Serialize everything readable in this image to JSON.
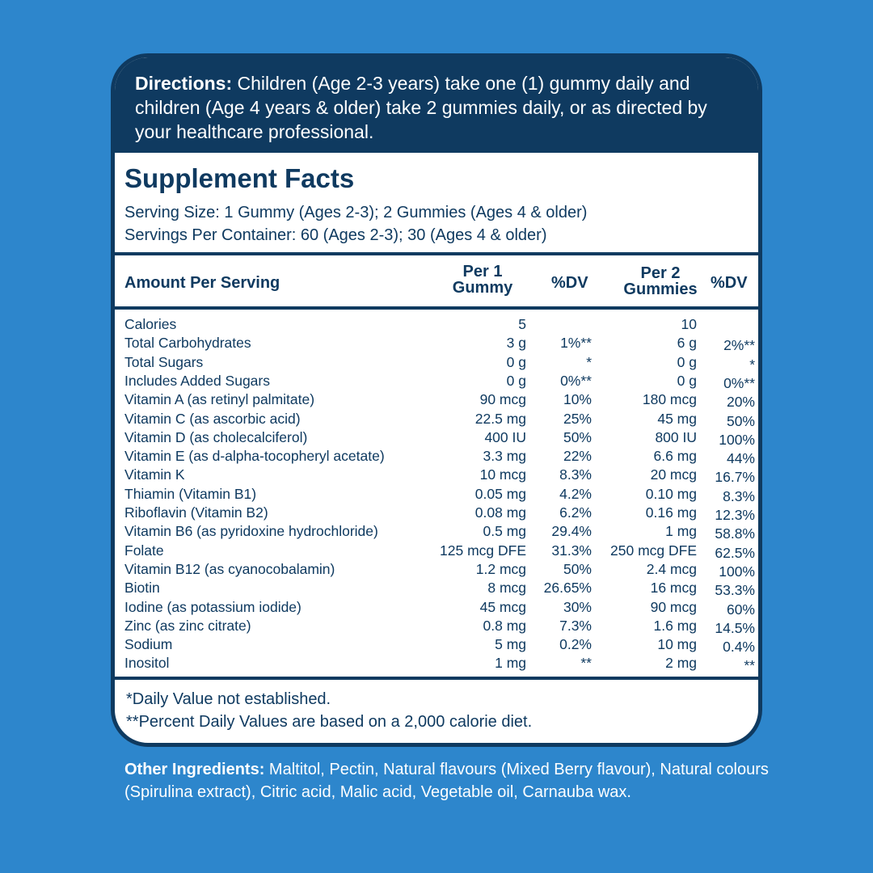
{
  "directions": {
    "label": "Directions:",
    "text": " Children (Age 2-3 years) take one (1) gummy daily and children (Age 4 years & older) take 2 gummies daily, or as directed by your healthcare professional."
  },
  "facts": {
    "title": "Supplement Facts",
    "serving_size": "Serving Size: 1 Gummy (Ages 2-3); 2 Gummies (Ages 4 & older)",
    "servings_per_container": "Servings Per Container: 60 (Ages 2-3); 30 (Ages 4 & older)",
    "headers": {
      "amount": "Amount Per Serving",
      "per1_line1": "Per 1",
      "per1_line2": "Gummy",
      "dv1": "%DV",
      "per2_line1": "Per 2",
      "per2_line2": "Gummies",
      "dv2": "%DV"
    },
    "rows": [
      {
        "name": "Calories",
        "v1": "5",
        "d1": "",
        "v2": "10",
        "d2": ""
      },
      {
        "name": "Total Carbohydrates",
        "v1": "3 g",
        "d1": "1%**",
        "v2": "6 g",
        "d2": "2%**"
      },
      {
        "name": "Total Sugars",
        "v1": "0 g",
        "d1": "*",
        "v2": "0 g",
        "d2": "*"
      },
      {
        "name": "Includes Added Sugars",
        "v1": "0 g",
        "d1": "0%**",
        "v2": "0 g",
        "d2": "0%**"
      },
      {
        "name": "Vitamin A (as retinyl palmitate)",
        "v1": "90 mcg",
        "d1": "10%",
        "v2": "180 mcg",
        "d2": "20%"
      },
      {
        "name": "Vitamin C (as ascorbic acid)",
        "v1": "22.5 mg",
        "d1": "25%",
        "v2": "45 mg",
        "d2": "50%"
      },
      {
        "name": "Vitamin D (as cholecalciferol)",
        "v1": "400 IU",
        "d1": "50%",
        "v2": "800 IU",
        "d2": "100%"
      },
      {
        "name": "Vitamin E (as d-alpha-tocopheryl acetate)",
        "v1": "3.3 mg",
        "d1": "22%",
        "v2": "6.6 mg",
        "d2": "44%"
      },
      {
        "name": "Vitamin K",
        "v1": "10 mcg",
        "d1": "8.3%",
        "v2": "20 mcg",
        "d2": "16.7%"
      },
      {
        "name": "Thiamin (Vitamin B1)",
        "v1": "0.05 mg",
        "d1": "4.2%",
        "v2": "0.10 mg",
        "d2": "8.3%"
      },
      {
        "name": "Riboflavin (Vitamin B2)",
        "v1": "0.08 mg",
        "d1": "6.2%",
        "v2": "0.16 mg",
        "d2": "12.3%"
      },
      {
        "name": "Vitamin B6 (as pyridoxine hydrochloride)",
        "v1": "0.5 mg",
        "d1": "29.4%",
        "v2": "1 mg",
        "d2": "58.8%"
      },
      {
        "name": "Folate",
        "v1": "125 mcg DFE",
        "d1": "31.3%",
        "v2": "250 mcg DFE",
        "d2": "62.5%"
      },
      {
        "name": "Vitamin B12 (as cyanocobalamin)",
        "v1": "1.2 mcg",
        "d1": "50%",
        "v2": "2.4 mcg",
        "d2": "100%"
      },
      {
        "name": "Biotin",
        "v1": "8 mcg",
        "d1": "26.65%",
        "v2": "16 mcg",
        "d2": "53.3%"
      },
      {
        "name": "Iodine (as potassium iodide)",
        "v1": "45 mcg",
        "d1": "30%",
        "v2": "90 mcg",
        "d2": "60%"
      },
      {
        "name": "Zinc (as zinc citrate)",
        "v1": "0.8 mg",
        "d1": "7.3%",
        "v2": "1.6 mg",
        "d2": "14.5%"
      },
      {
        "name": "Sodium",
        "v1": "5 mg",
        "d1": "0.2%",
        "v2": "10 mg",
        "d2": "0.4%"
      },
      {
        "name": "Inositol",
        "v1": "1 mg",
        "d1": "**",
        "v2": "2 mg",
        "d2": "**"
      }
    ],
    "footnote1": "*Daily Value not established.",
    "footnote2": "**Percent Daily Values are based on a 2,000 calorie diet."
  },
  "other_ingredients": {
    "label": "Other Ingredients:",
    "text": " Maltitol, Pectin, Natural flavours (Mixed Berry flavour), Natural colours (Spirulina extract), Citric acid, Malic acid, Vegetable oil, Carnauba wax."
  },
  "colors": {
    "background": "#2d86cc",
    "navy": "#0f3a60",
    "panel": "#ffffff"
  }
}
